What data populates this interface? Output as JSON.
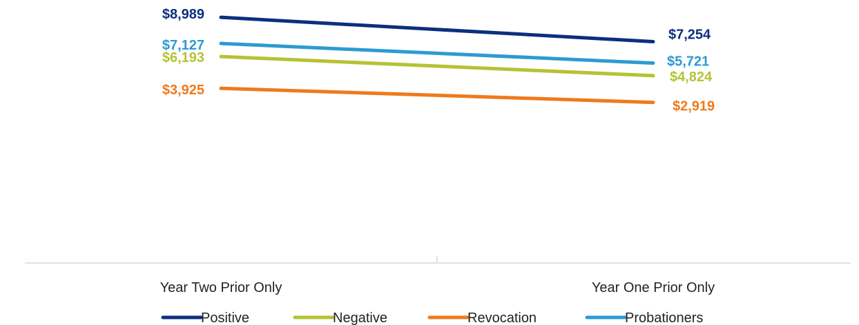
{
  "chart_data": {
    "type": "line",
    "title": "",
    "xlabel": "",
    "ylabel": "",
    "categories": [
      "Year Two Prior Only",
      "Year One Prior Only"
    ],
    "series": [
      {
        "name": "Positive",
        "values": [
          8989,
          7254
        ],
        "labels": [
          "$8,989",
          "$7,254"
        ],
        "color": "#0B2F7F"
      },
      {
        "name": "Negative",
        "values": [
          6193,
          4824
        ],
        "labels": [
          "$6,193",
          "$4,824"
        ],
        "color": "#B5C334"
      },
      {
        "name": "Revocation",
        "values": [
          3925,
          2919
        ],
        "labels": [
          "$3,925",
          "$2,919"
        ],
        "color": "#EE7A1C"
      },
      {
        "name": "Probationers",
        "values": [
          7127,
          5721
        ],
        "labels": [
          "$7,127",
          "$5,721"
        ],
        "color": "#2D9AD3"
      }
    ],
    "legend_order": [
      "Positive",
      "Negative",
      "Revocation",
      "Probationers"
    ],
    "legend_position": "bottom",
    "grid": false,
    "axis_line_color": "#D9D9D9"
  }
}
